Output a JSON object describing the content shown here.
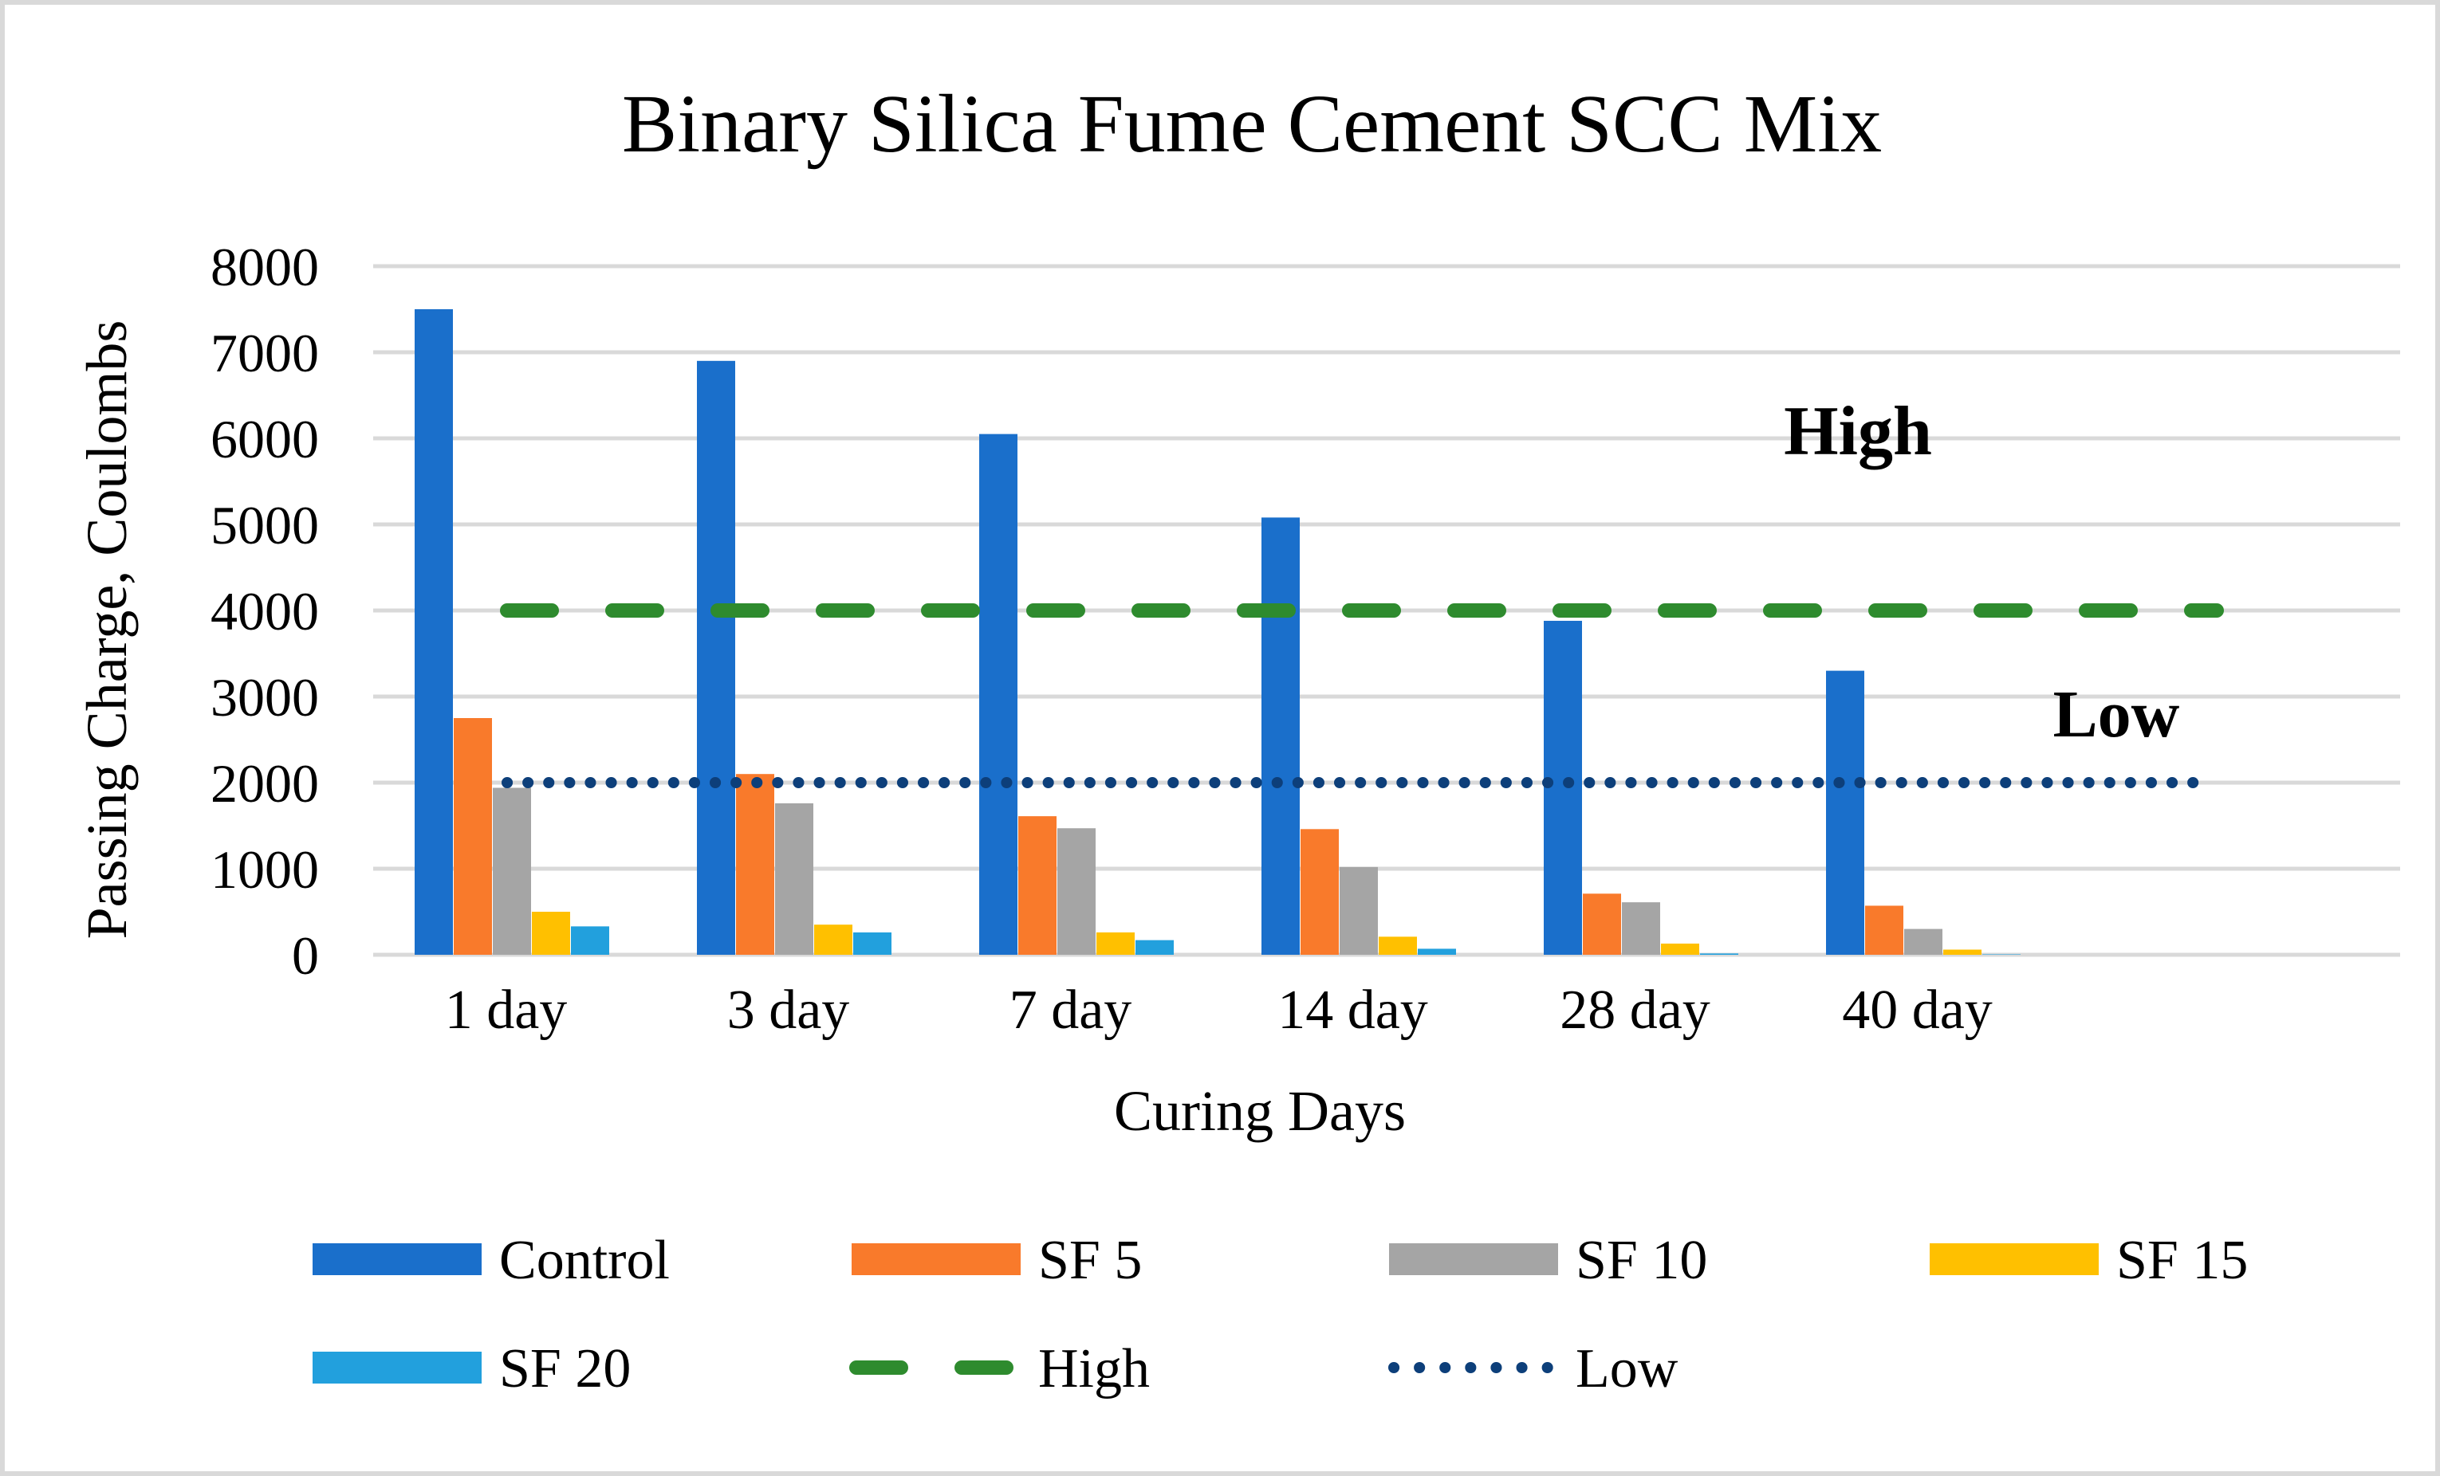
{
  "chart_data": {
    "type": "bar",
    "title": "Binary Silica Fume Cement SCC Mix",
    "xlabel": "Curing Days",
    "ylabel": "Passing Charge, Coulombs",
    "ylim": [
      0,
      8000
    ],
    "yticks": [
      "0",
      "1000",
      "2000",
      "3000",
      "4000",
      "5000",
      "6000",
      "7000",
      "8000"
    ],
    "categories": [
      "1 day",
      "3 day",
      "7 day",
      "14 day",
      "28 day",
      "40 day"
    ],
    "grid": true,
    "legend_position": "bottom",
    "series": [
      {
        "name": "Control",
        "color": "#1a6fcb",
        "values": [
          7500,
          6900,
          6050,
          5080,
          3880,
          3300
        ]
      },
      {
        "name": "SF 5",
        "color": "#f97a2b",
        "values": [
          2750,
          2100,
          1610,
          1460,
          710,
          570
        ]
      },
      {
        "name": "SF 10",
        "color": "#a5a5a5",
        "values": [
          1940,
          1760,
          1470,
          1020,
          610,
          300
        ]
      },
      {
        "name": "SF 15",
        "color": "#ffc000",
        "values": [
          500,
          350,
          260,
          210,
          130,
          60
        ]
      },
      {
        "name": "SF 20",
        "color": "#22a0dd",
        "values": [
          330,
          260,
          170,
          70,
          15,
          5
        ]
      }
    ],
    "reference_lines": [
      {
        "name": "High",
        "value": 4000,
        "color": "#2e8b2e",
        "style": "dashed",
        "annotation": "High"
      },
      {
        "name": "Low",
        "value": 2000,
        "color": "#0d3f7a",
        "style": "dotted",
        "annotation": "Low"
      }
    ]
  }
}
